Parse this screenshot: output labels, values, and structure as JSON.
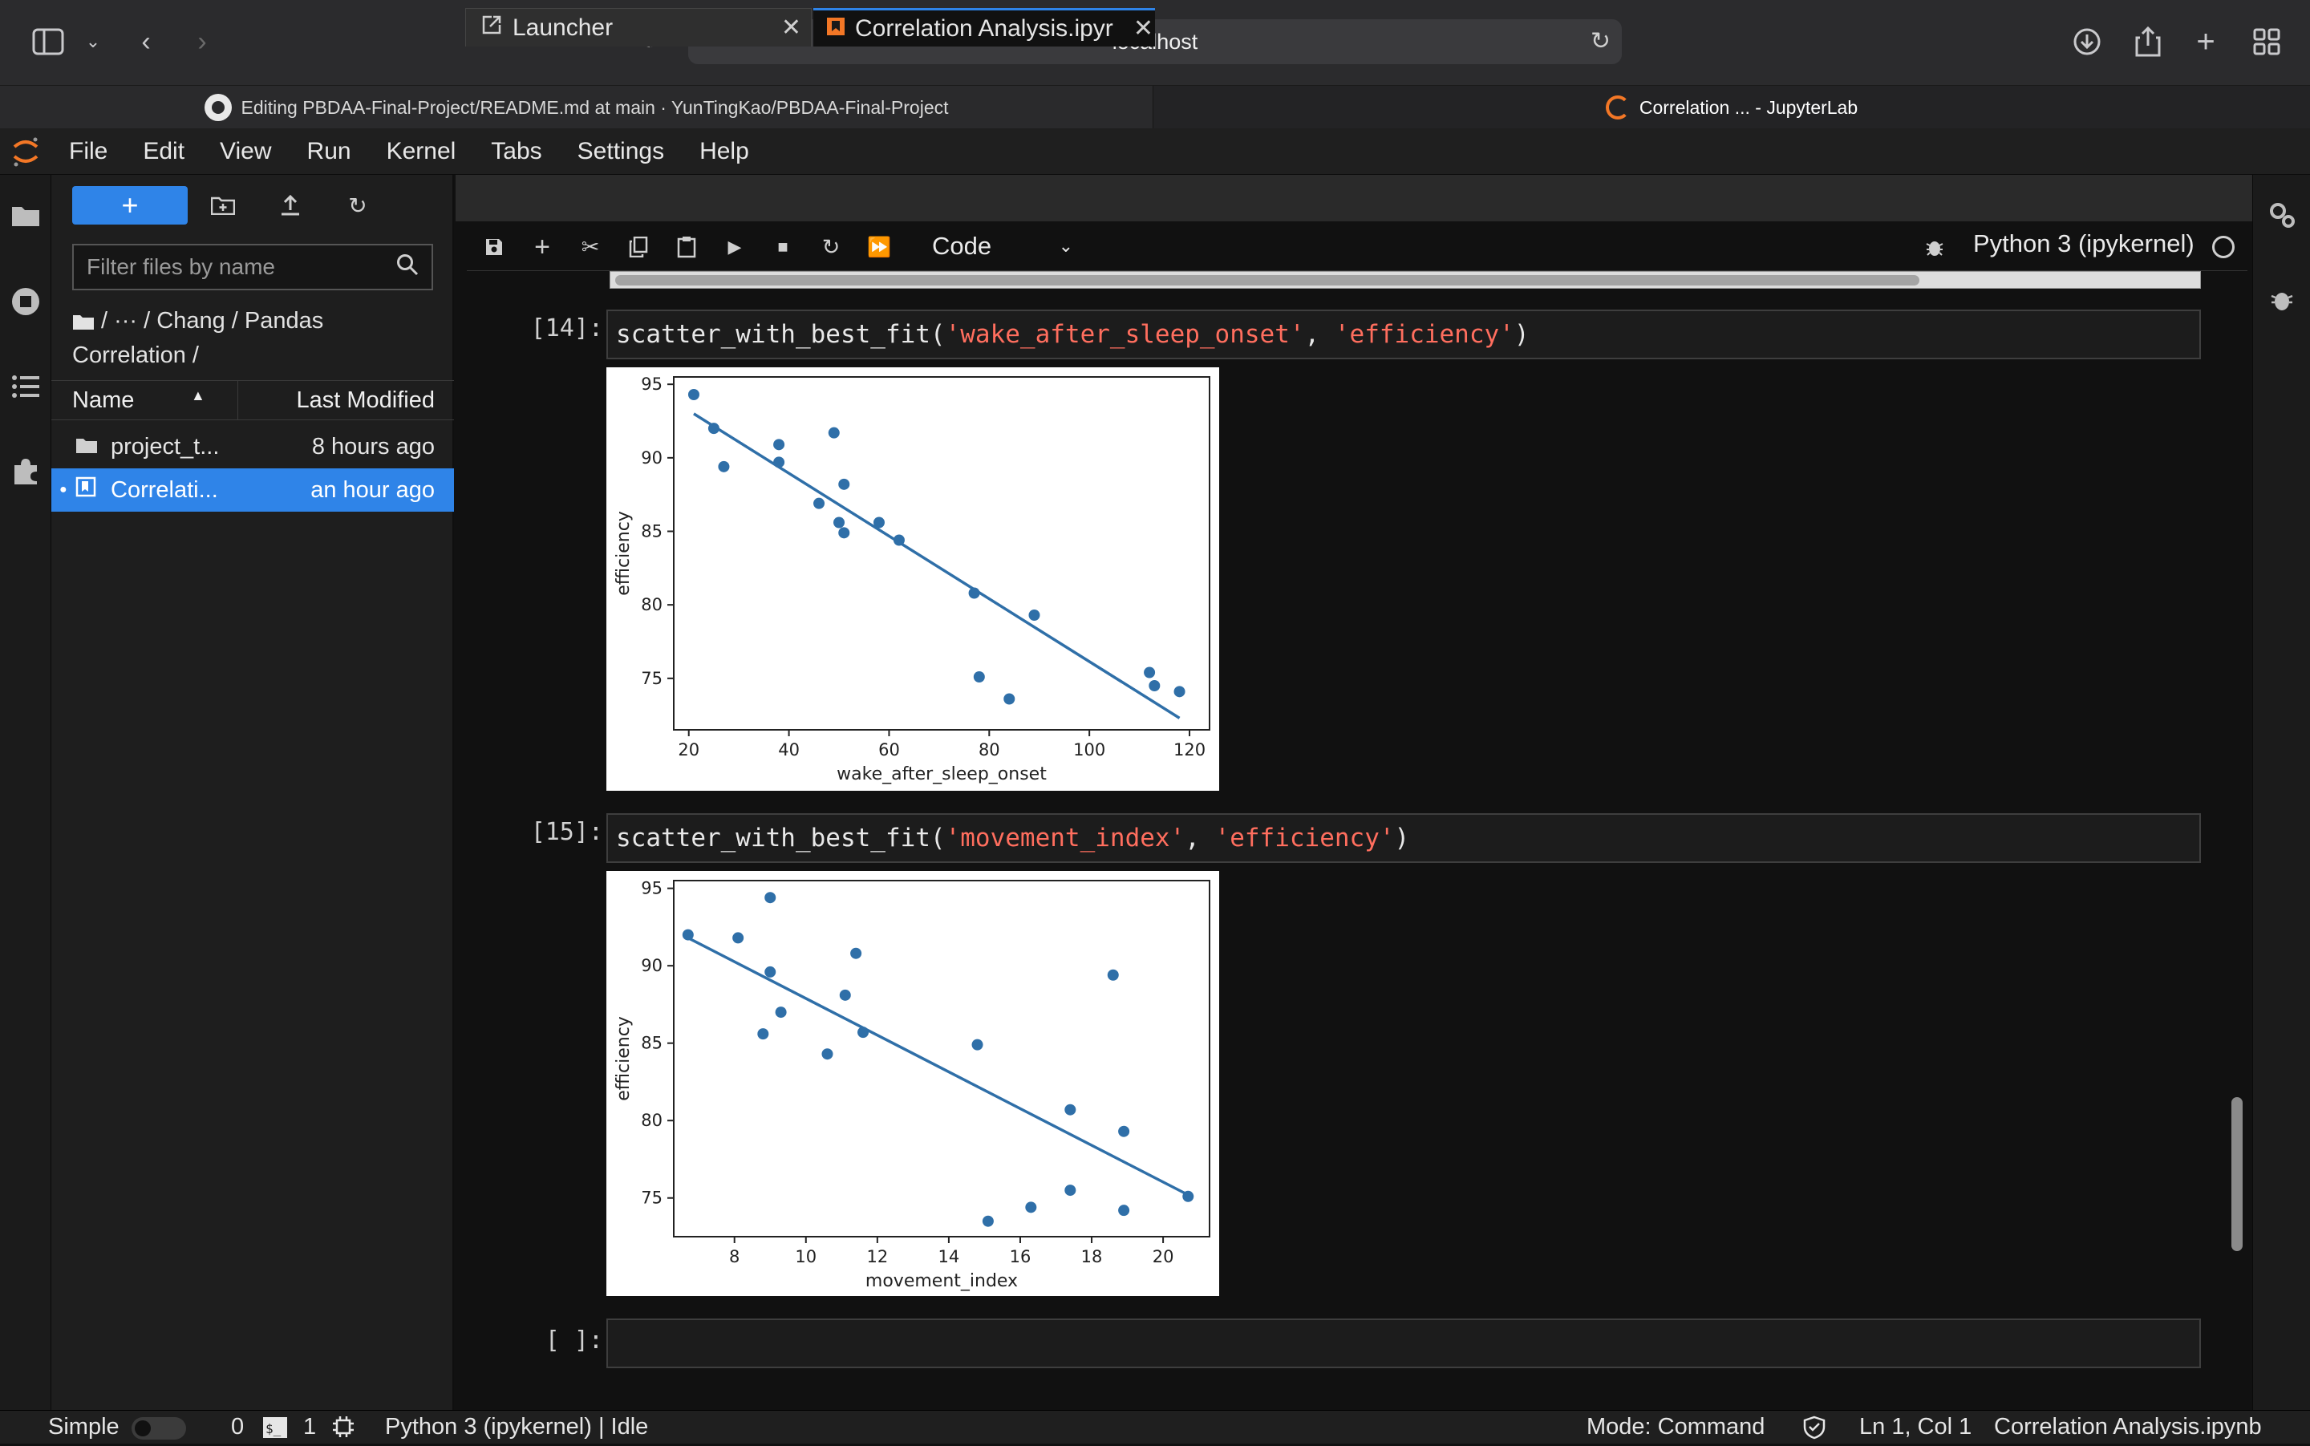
{
  "browser": {
    "address": "localhost",
    "tabs": [
      {
        "title": "Editing PBDAA-Final-Project/README.md at main · YunTingKao/PBDAA-Final-Project",
        "active": false
      },
      {
        "title": "Correlation ... - JupyterLab",
        "active": true
      }
    ]
  },
  "menubar": {
    "items": [
      "File",
      "Edit",
      "View",
      "Run",
      "Kernel",
      "Tabs",
      "Settings",
      "Help"
    ]
  },
  "file_browser": {
    "new_button_label": "+",
    "filter_placeholder": "Filter files by name",
    "breadcrumb": "/   ···  / Chang / Pandas Correlation /",
    "header": {
      "name": "Name",
      "modified": "Last Modified"
    },
    "rows": [
      {
        "name": "project_t...",
        "modified": "8 hours ago",
        "type": "folder",
        "selected": false
      },
      {
        "name": "Correlati...",
        "modified": "an hour ago",
        "type": "notebook",
        "selected": true
      }
    ]
  },
  "doc_tabs": [
    {
      "label": "Launcher",
      "active": false
    },
    {
      "label": "Correlation Analysis.ipyr",
      "active": true
    }
  ],
  "notebook_toolbar": {
    "cell_type": "Code",
    "kernel": "Python 3 (ipykernel)"
  },
  "cells": [
    {
      "prompt": "[14]:",
      "code_prefix": "scatter_with_best_fit(",
      "arg1": "'wake_after_sleep_onset'",
      "sep": ", ",
      "arg2": "'efficiency'",
      "code_suffix": ")"
    },
    {
      "prompt": "[15]:",
      "code_prefix": "scatter_with_best_fit(",
      "arg1": "'movement_index'",
      "sep": ", ",
      "arg2": "'efficiency'",
      "code_suffix": ")"
    },
    {
      "prompt": "[ ]:"
    }
  ],
  "chart_data": [
    {
      "type": "scatter",
      "title": "",
      "xlabel": "wake_after_sleep_onset",
      "ylabel": "efficiency",
      "xlim": [
        17,
        124
      ],
      "ylim": [
        71.5,
        95.5
      ],
      "xticks": [
        20,
        40,
        60,
        80,
        100,
        120
      ],
      "yticks": [
        75,
        80,
        85,
        90,
        95
      ],
      "grid": false,
      "points_x": [
        21,
        25,
        27,
        38,
        38,
        49,
        51,
        46,
        50,
        51,
        58,
        62,
        77,
        78,
        84,
        89,
        112,
        113,
        118
      ],
      "points_y": [
        94.3,
        92,
        89.4,
        90.9,
        89.7,
        91.7,
        88.2,
        86.9,
        85.6,
        84.9,
        85.6,
        84.4,
        80.8,
        75.1,
        73.6,
        79.3,
        75.4,
        74.5,
        74.1
      ],
      "best_fit": {
        "x": [
          21,
          118
        ],
        "y": [
          93,
          72.3
        ]
      },
      "point_color": "#2f6fa8"
    },
    {
      "type": "scatter",
      "title": "",
      "xlabel": "movement_index",
      "ylabel": "efficiency",
      "xlim": [
        6.3,
        21.3
      ],
      "ylim": [
        72.5,
        95.5
      ],
      "xticks": [
        8,
        10,
        12,
        14,
        16,
        18,
        20
      ],
      "yticks": [
        75,
        80,
        85,
        90,
        95
      ],
      "grid": false,
      "points_x": [
        6.7,
        8.1,
        9.0,
        9.0,
        8.8,
        9.3,
        11.4,
        11.1,
        11.6,
        10.6,
        14.8,
        15.1,
        16.3,
        17.4,
        17.4,
        18.6,
        18.9,
        18.9,
        20.7
      ],
      "points_y": [
        92,
        91.8,
        94.4,
        89.6,
        85.6,
        87,
        90.8,
        88.1,
        85.7,
        84.3,
        84.9,
        73.5,
        74.4,
        80.7,
        75.5,
        89.4,
        79.3,
        74.2,
        75.1
      ],
      "best_fit": {
        "x": [
          6.7,
          20.7
        ],
        "y": [
          91.8,
          75.2
        ]
      },
      "point_color": "#2f6fa8"
    }
  ],
  "status_bar": {
    "mode_toggle": "Simple",
    "terminals": "0",
    "kernels": "1",
    "kernel_status": "Python 3 (ipykernel) | Idle",
    "mode": "Mode: Command",
    "cursor": "Ln 1, Col 1",
    "file": "Correlation Analysis.ipynb"
  }
}
